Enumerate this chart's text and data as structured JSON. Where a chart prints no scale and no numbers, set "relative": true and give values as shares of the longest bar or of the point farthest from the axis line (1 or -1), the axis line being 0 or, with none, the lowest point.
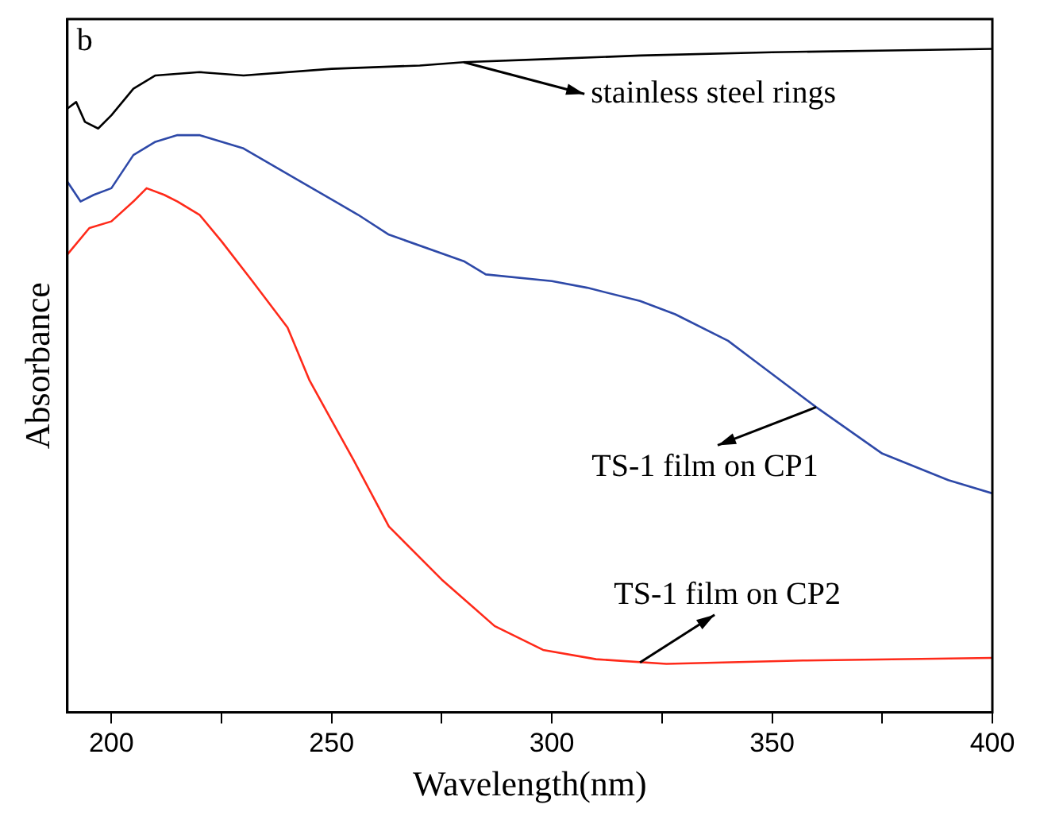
{
  "chart_data": {
    "type": "line",
    "relative": true,
    "xlabel": "Wavelength(nm)",
    "ylabel": "Absorbance",
    "xlim": [
      190,
      400
    ],
    "xticks": [
      200,
      {
        "value": 225,
        "label": null
      },
      250,
      {
        "value": 275,
        "label": null
      },
      300,
      {
        "value": 325,
        "label": null
      },
      350,
      {
        "value": 375,
        "label": null
      },
      400
    ],
    "grid": false,
    "legend": false,
    "marker": "none",
    "line_style": "solid",
    "annotations": [
      "b",
      {
        "text": "stainless steel rings",
        "x": 280,
        "y": 0.98
      },
      {
        "text": "TS-1 film on CP1",
        "x": 360,
        "y": 0.46
      },
      {
        "text": "TS-1 film on CP2",
        "x": 320,
        "y": 0.075
      }
    ],
    "series": [
      {
        "color": "#000000",
        "x": [
          190,
          192,
          194,
          197,
          200,
          205,
          210,
          220,
          230,
          250,
          270,
          280,
          300,
          320,
          350,
          380,
          400
        ],
        "values": [
          0.91,
          0.92,
          0.89,
          0.88,
          0.9,
          0.94,
          0.96,
          0.965,
          0.96,
          0.97,
          0.975,
          0.98,
          0.985,
          0.99,
          0.995,
          0.998,
          1
        ]
      },
      {
        "color": "#2e49a8",
        "x": [
          190,
          193,
          196,
          200,
          205,
          210,
          215,
          220,
          230,
          243,
          256,
          263,
          280,
          285,
          300,
          308,
          320,
          328,
          340,
          346,
          360,
          375,
          390,
          400
        ],
        "values": [
          0.8,
          0.77,
          0.78,
          0.79,
          0.84,
          0.86,
          0.87,
          0.87,
          0.85,
          0.8,
          0.75,
          0.72,
          0.68,
          0.66,
          0.65,
          0.64,
          0.62,
          0.6,
          0.56,
          0.53,
          0.46,
          0.39,
          0.35,
          0.33
        ]
      },
      {
        "color": "#ff2a1a",
        "x": [
          190,
          195,
          200,
          205,
          208,
          212,
          215,
          220,
          225,
          232,
          240,
          245,
          250,
          255,
          263,
          275,
          287,
          298,
          310,
          326,
          357,
          400
        ],
        "values": [
          0.69,
          0.73,
          0.74,
          0.77,
          0.79,
          0.78,
          0.77,
          0.75,
          0.71,
          0.65,
          0.58,
          0.5,
          0.44,
          0.38,
          0.28,
          0.2,
          0.13,
          0.094,
          0.08,
          0.073,
          0.078,
          0.082
        ]
      }
    ]
  }
}
